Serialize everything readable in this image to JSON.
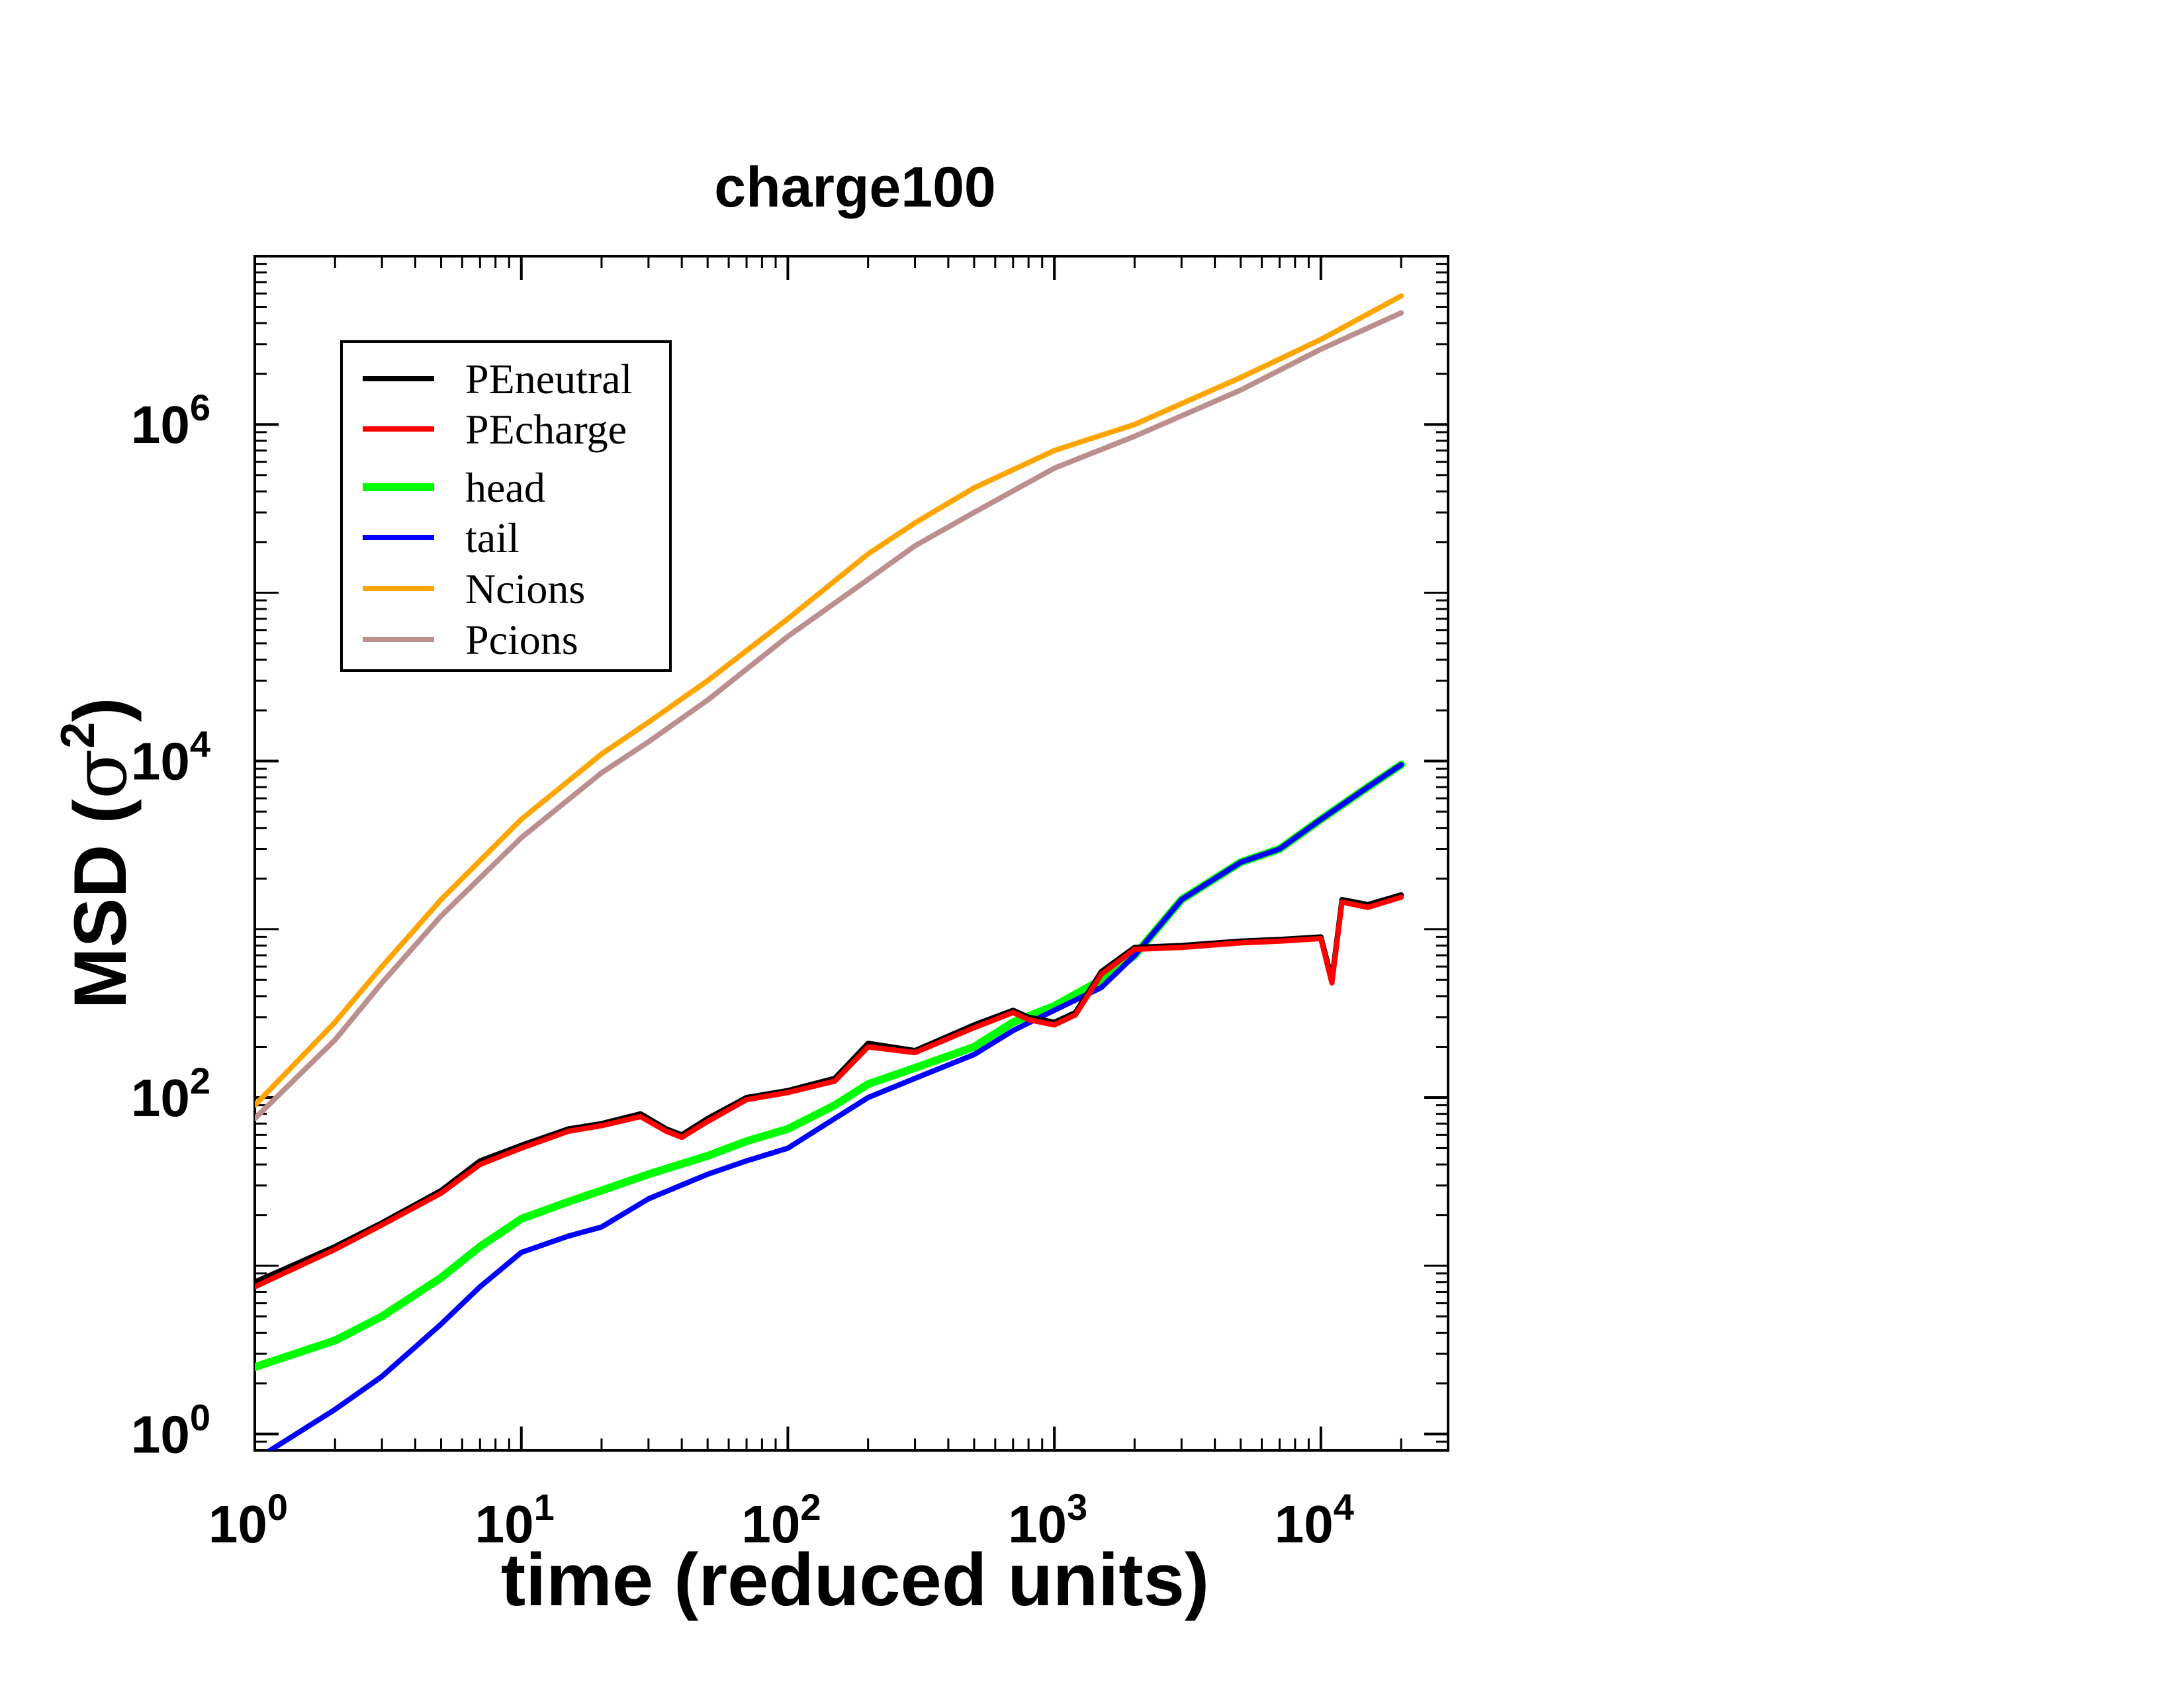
{
  "chart_data": {
    "type": "line",
    "title": "charge100",
    "xlabel": "time (reduced units)",
    "ylabel": "MSD (σ²)",
    "ylabel_base": "MSD (",
    "ylabel_symbol": "σ",
    "ylabel_exp": "2",
    "ylabel_close": ")",
    "x_scale": "log",
    "y_scale": "log",
    "xlim": [
      1,
      30000
    ],
    "ylim": [
      0.8,
      10000000
    ],
    "grid": false,
    "legend_position": "top-left",
    "x_ticks": [
      {
        "value": 1,
        "base": "10",
        "exp": "0"
      },
      {
        "value": 10,
        "base": "10",
        "exp": "1"
      },
      {
        "value": 100,
        "base": "10",
        "exp": "2"
      },
      {
        "value": 1000,
        "base": "10",
        "exp": "3"
      },
      {
        "value": 10000,
        "base": "10",
        "exp": "4"
      }
    ],
    "y_ticks": [
      {
        "value": 1,
        "base": "10",
        "exp": "0"
      },
      {
        "value": 100,
        "base": "10",
        "exp": "2"
      },
      {
        "value": 10000,
        "base": "10",
        "exp": "4"
      },
      {
        "value": 1000000,
        "base": "10",
        "exp": "6"
      }
    ],
    "series": [
      {
        "name": "PEneutral",
        "color": "#000000",
        "width": 8,
        "x": [
          1,
          2,
          3,
          5,
          7,
          10,
          15,
          20,
          28,
          35,
          40,
          50,
          70,
          100,
          150,
          200,
          300,
          500,
          700,
          800,
          1000,
          1200,
          1500,
          2000,
          3000,
          5000,
          7000,
          10000,
          11000,
          12000,
          15000,
          20000
        ],
        "y": [
          8,
          13,
          18,
          28,
          42,
          52,
          65,
          70,
          80,
          65,
          60,
          75,
          100,
          110,
          130,
          210,
          190,
          270,
          330,
          300,
          280,
          320,
          560,
          780,
          800,
          850,
          870,
          900,
          500,
          1500,
          1400,
          1600
        ]
      },
      {
        "name": "PEcharge",
        "color": "#ff0000",
        "width": 8,
        "x": [
          1,
          2,
          3,
          5,
          7,
          10,
          15,
          20,
          28,
          35,
          40,
          50,
          70,
          100,
          150,
          200,
          300,
          500,
          700,
          800,
          1000,
          1200,
          1500,
          2000,
          3000,
          5000,
          7000,
          10000,
          11000,
          12000,
          15000,
          20000
        ],
        "y": [
          7.5,
          12.5,
          17.5,
          27,
          40,
          50,
          63,
          68,
          77,
          63,
          58,
          72,
          97,
          107,
          125,
          200,
          185,
          260,
          320,
          290,
          270,
          310,
          540,
          760,
          780,
          830,
          850,
          880,
          480,
          1450,
          1350,
          1550
        ]
      },
      {
        "name": "head",
        "color": "#00ff00",
        "width": 12,
        "x": [
          1,
          2,
          3,
          5,
          7,
          10,
          15,
          20,
          30,
          50,
          70,
          100,
          150,
          200,
          300,
          500,
          700,
          1000,
          1500,
          2000,
          3000,
          5000,
          7000,
          10000,
          15000,
          20000
        ],
        "y": [
          2.5,
          3.6,
          5,
          8.5,
          13,
          19,
          24,
          28,
          35,
          45,
          55,
          65,
          90,
          120,
          150,
          200,
          280,
          350,
          500,
          700,
          1500,
          2500,
          3000,
          4500,
          7000,
          9500
        ]
      },
      {
        "name": "tail",
        "color": "#0000ff",
        "width": 8,
        "x": [
          1,
          2,
          3,
          5,
          7,
          10,
          15,
          20,
          30,
          50,
          70,
          100,
          150,
          200,
          300,
          500,
          700,
          1000,
          1500,
          2000,
          3000,
          5000,
          7000,
          10000,
          15000,
          20000
        ],
        "y": [
          0.7,
          1.4,
          2.2,
          4.5,
          7.5,
          12,
          15,
          17,
          25,
          35,
          42,
          50,
          75,
          100,
          130,
          180,
          250,
          330,
          450,
          700,
          1500,
          2500,
          3000,
          4500,
          7000,
          9500
        ]
      },
      {
        "name": "Ncions",
        "color": "#ffa500",
        "width": 8,
        "x": [
          1,
          2,
          3,
          5,
          10,
          20,
          30,
          50,
          100,
          200,
          300,
          500,
          1000,
          2000,
          5000,
          10000,
          20000
        ],
        "y": [
          90,
          280,
          600,
          1500,
          4500,
          11000,
          17000,
          30000,
          70000,
          170000,
          260000,
          420000,
          700000,
          1000000,
          1900000,
          3200000,
          5800000
        ]
      },
      {
        "name": "Pcions",
        "color": "#bc8f8f",
        "width": 8,
        "x": [
          1,
          2,
          3,
          5,
          10,
          20,
          30,
          50,
          100,
          200,
          300,
          500,
          1000,
          2000,
          5000,
          10000,
          20000
        ],
        "y": [
          75,
          220,
          480,
          1200,
          3500,
          8500,
          13000,
          23000,
          55000,
          120000,
          190000,
          300000,
          550000,
          850000,
          1600000,
          2800000,
          4600000
        ]
      }
    ]
  }
}
